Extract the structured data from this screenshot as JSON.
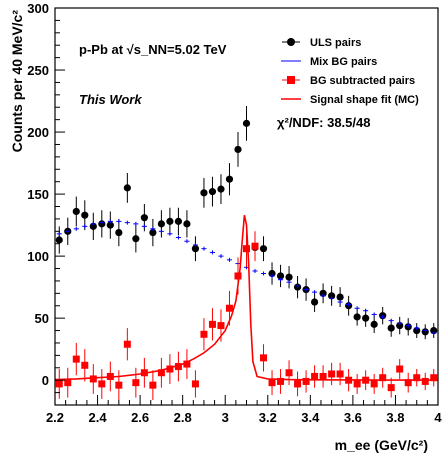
{
  "chart_data": {
    "type": "scatter",
    "xlabel": "m_ee (GeV/c²)",
    "ylabel": "Counts per 40 MeV/c²",
    "xlim": [
      2.2,
      4.0
    ],
    "ylim": [
      -20,
      300
    ],
    "x_ticks": [
      "2.2",
      "2.4",
      "2.6",
      "2.8",
      "3",
      "3.2",
      "3.4",
      "3.6",
      "3.8",
      "4"
    ],
    "y_ticks": [
      "0",
      "50",
      "100",
      "150",
      "200",
      "250",
      "300"
    ],
    "grid": false,
    "legend_position": "top-right",
    "annotations": {
      "system": "p-Pb at √s_NN=5.02 TeV",
      "work": "This Work",
      "chi2": "χ²/NDF: 38.5/48"
    },
    "series": [
      {
        "name": "ULS pairs",
        "marker": "circle",
        "color": "#000000",
        "x": [
          2.22,
          2.26,
          2.3,
          2.34,
          2.38,
          2.42,
          2.46,
          2.5,
          2.54,
          2.58,
          2.62,
          2.66,
          2.7,
          2.74,
          2.78,
          2.82,
          2.86,
          2.9,
          2.94,
          2.98,
          3.02,
          3.06,
          3.1,
          3.14,
          3.18,
          3.22,
          3.26,
          3.3,
          3.34,
          3.38,
          3.42,
          3.46,
          3.5,
          3.54,
          3.58,
          3.62,
          3.66,
          3.7,
          3.74,
          3.78,
          3.82,
          3.86,
          3.9,
          3.94,
          3.98
        ],
        "y": [
          113,
          120,
          136,
          133,
          124,
          126,
          125,
          119,
          155,
          114,
          131,
          119,
          126,
          128,
          128,
          126,
          106,
          151,
          152,
          154,
          162,
          186,
          207,
          107,
          106,
          86,
          84,
          83,
          75,
          73,
          63,
          70,
          68,
          67,
          60,
          51,
          50,
          45,
          52,
          42,
          44,
          43,
          40,
          39,
          40
        ],
        "y_err": [
          11,
          11,
          12,
          12,
          11,
          11,
          11,
          11,
          12,
          11,
          11,
          11,
          11,
          11,
          11,
          11,
          10,
          12,
          12,
          12,
          13,
          14,
          14,
          10,
          10,
          9,
          9,
          9,
          9,
          9,
          8,
          8,
          8,
          8,
          8,
          7,
          7,
          7,
          7,
          7,
          7,
          7,
          6,
          6,
          6
        ]
      },
      {
        "name": "Mix BG pairs",
        "marker": "line-errbar",
        "color": "#0000ff",
        "x": [
          2.22,
          2.26,
          2.3,
          2.34,
          2.38,
          2.42,
          2.46,
          2.5,
          2.54,
          2.58,
          2.62,
          2.66,
          2.7,
          2.74,
          2.78,
          2.82,
          2.86,
          2.9,
          2.94,
          2.98,
          3.02,
          3.06,
          3.1,
          3.14,
          3.18,
          3.22,
          3.26,
          3.3,
          3.34,
          3.38,
          3.42,
          3.46,
          3.5,
          3.54,
          3.58,
          3.62,
          3.66,
          3.7,
          3.74,
          3.78,
          3.82,
          3.86,
          3.9,
          3.94,
          3.98
        ],
        "y": [
          118,
          120,
          122,
          124,
          126,
          127,
          128,
          128,
          127,
          126,
          124,
          122,
          120,
          118,
          115,
          112,
          109,
          106,
          103,
          100,
          97,
          94,
          91,
          88,
          86,
          84,
          81,
          79,
          76,
          73,
          71,
          68,
          66,
          63,
          61,
          58,
          56,
          53,
          51,
          48,
          46,
          44,
          42,
          40,
          38
        ]
      },
      {
        "name": "BG subtracted pairs",
        "marker": "square",
        "color": "#ff0000",
        "x": [
          2.22,
          2.26,
          2.3,
          2.34,
          2.38,
          2.42,
          2.46,
          2.5,
          2.54,
          2.58,
          2.62,
          2.66,
          2.7,
          2.74,
          2.78,
          2.82,
          2.86,
          2.9,
          2.94,
          2.98,
          3.02,
          3.06,
          3.1,
          3.14,
          3.18,
          3.22,
          3.26,
          3.3,
          3.34,
          3.38,
          3.42,
          3.46,
          3.5,
          3.54,
          3.58,
          3.62,
          3.66,
          3.7,
          3.74,
          3.78,
          3.82,
          3.86,
          3.9,
          3.94,
          3.98
        ],
        "y": [
          -3,
          -2,
          17,
          12,
          1,
          -3,
          3,
          -4,
          29,
          -2,
          6,
          -4,
          6,
          9,
          11,
          13,
          -3,
          37,
          45,
          44,
          58,
          84,
          106,
          108,
          18,
          -2,
          -1,
          6,
          -3,
          -1,
          3,
          3,
          5,
          5,
          0,
          -3,
          0,
          -3,
          2,
          -6,
          9,
          -2,
          2,
          -1,
          2
        ],
        "y_err": [
          12,
          12,
          13,
          13,
          12,
          12,
          12,
          12,
          13,
          12,
          12,
          12,
          12,
          12,
          12,
          12,
          11,
          13,
          13,
          13,
          14,
          15,
          15,
          12,
          11,
          10,
          10,
          10,
          10,
          9,
          9,
          9,
          9,
          9,
          9,
          8,
          8,
          8,
          8,
          8,
          8,
          8,
          7,
          7,
          7
        ]
      },
      {
        "name": "Signal shape fit (MC)",
        "marker": "line",
        "color": "#ff0000",
        "x": [
          2.2,
          2.3,
          2.4,
          2.5,
          2.6,
          2.7,
          2.8,
          2.85,
          2.9,
          2.95,
          3.0,
          3.03,
          3.05,
          3.07,
          3.08,
          3.09,
          3.1,
          3.11,
          3.12,
          3.13,
          3.15,
          3.2,
          3.3,
          3.4,
          3.6,
          3.8,
          4.0
        ],
        "y": [
          0.5,
          1,
          2,
          3,
          5,
          8,
          13,
          17,
          22,
          29,
          40,
          52,
          64,
          90,
          112,
          133,
          125,
          95,
          45,
          15,
          3,
          1,
          0.5,
          0.3,
          0.2,
          0.1,
          0.1
        ]
      }
    ]
  }
}
